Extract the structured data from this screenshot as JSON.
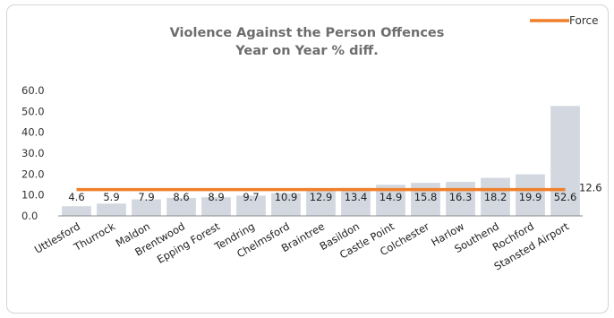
{
  "chart_data": {
    "type": "bar",
    "title_line1": "Violence Against the Person Offences",
    "title_line2": "Year on Year % diff.",
    "xlabel": "",
    "ylabel": "",
    "ylim": [
      0,
      60
    ],
    "yticks": [
      "0.0",
      "10.0",
      "20.0",
      "30.0",
      "40.0",
      "50.0",
      "60.0"
    ],
    "categories": [
      "Uttlesford",
      "Thurrock",
      "Maldon",
      "Brentwood",
      "Epping Forest",
      "Tendring",
      "Chelmsford",
      "Braintree",
      "Basildon",
      "Castle Point",
      "Colchester",
      "Harlow",
      "Southend",
      "Rochford",
      "Stansted Airport"
    ],
    "values": [
      4.6,
      5.9,
      7.9,
      8.6,
      8.9,
      9.7,
      10.9,
      12.9,
      13.4,
      14.9,
      15.8,
      16.3,
      18.2,
      19.9,
      52.6
    ],
    "value_labels": [
      "4.6",
      "5.9",
      "7.9",
      "8.6",
      "8.9",
      "9.7",
      "10.9",
      "12.9",
      "13.4",
      "14.9",
      "15.8",
      "16.3",
      "18.2",
      "19.9",
      "52.6"
    ],
    "force": {
      "name": "Force",
      "value": 12.6,
      "label": "12.6"
    },
    "bar_color": "#d3d8e0",
    "line_color": "#f07f2a",
    "grid": false,
    "legend_position": "top-right"
  }
}
